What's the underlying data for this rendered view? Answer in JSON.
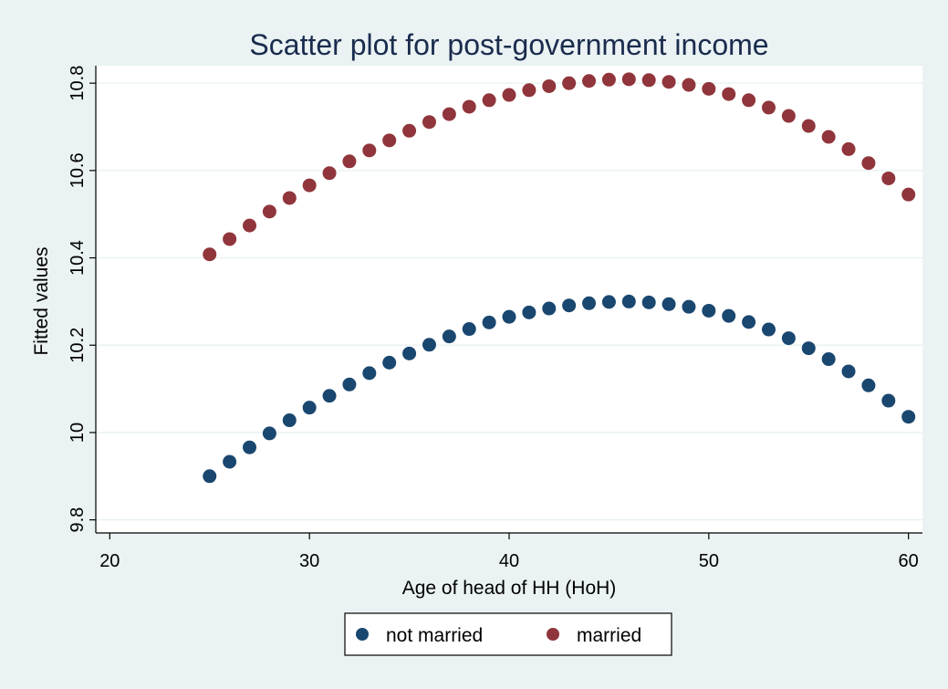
{
  "chart_data": {
    "type": "scatter",
    "title": "Scatter plot for post-government income",
    "xlabel": "Age of head of HH (HoH)",
    "ylabel": "Fitted values",
    "xlim": [
      19.3,
      60.7
    ],
    "ylim": [
      9.77,
      10.84
    ],
    "xticks": [
      20,
      30,
      40,
      50,
      60
    ],
    "xtick_labels": [
      "20",
      "30",
      "40",
      "50",
      "60"
    ],
    "yticks": [
      9.8,
      10.0,
      10.2,
      10.4,
      10.6,
      10.8
    ],
    "ytick_labels": [
      "9.8",
      "10",
      "10.2",
      "10.4",
      "10.6",
      "10.8"
    ],
    "grid": "horizontal",
    "legend_position": "bottom",
    "x": [
      25,
      26,
      27,
      28,
      29,
      30,
      31,
      32,
      33,
      34,
      35,
      36,
      37,
      38,
      39,
      40,
      41,
      42,
      43,
      44,
      45,
      46,
      47,
      48,
      49,
      50,
      51,
      52,
      53,
      54,
      55,
      56,
      57,
      58,
      59,
      60
    ],
    "series": [
      {
        "name": "not married",
        "color": "#1a476f",
        "values": [
          9.9,
          9.933,
          9.966,
          9.998,
          10.028,
          10.057,
          10.084,
          10.11,
          10.136,
          10.16,
          10.181,
          10.201,
          10.22,
          10.237,
          10.252,
          10.265,
          10.275,
          10.284,
          10.291,
          10.296,
          10.299,
          10.3,
          10.298,
          10.294,
          10.288,
          10.279,
          10.267,
          10.253,
          10.236,
          10.216,
          10.193,
          10.168,
          10.14,
          10.108,
          10.073,
          10.036
        ]
      },
      {
        "name": "married",
        "color": "#90353b",
        "values": [
          10.408,
          10.443,
          10.474,
          10.506,
          10.537,
          10.566,
          10.594,
          10.621,
          10.646,
          10.669,
          10.691,
          10.711,
          10.729,
          10.746,
          10.761,
          10.773,
          10.784,
          10.793,
          10.8,
          10.805,
          10.808,
          10.809,
          10.807,
          10.803,
          10.796,
          10.787,
          10.775,
          10.761,
          10.744,
          10.725,
          10.702,
          10.677,
          10.649,
          10.617,
          10.582,
          10.545
        ]
      }
    ]
  }
}
